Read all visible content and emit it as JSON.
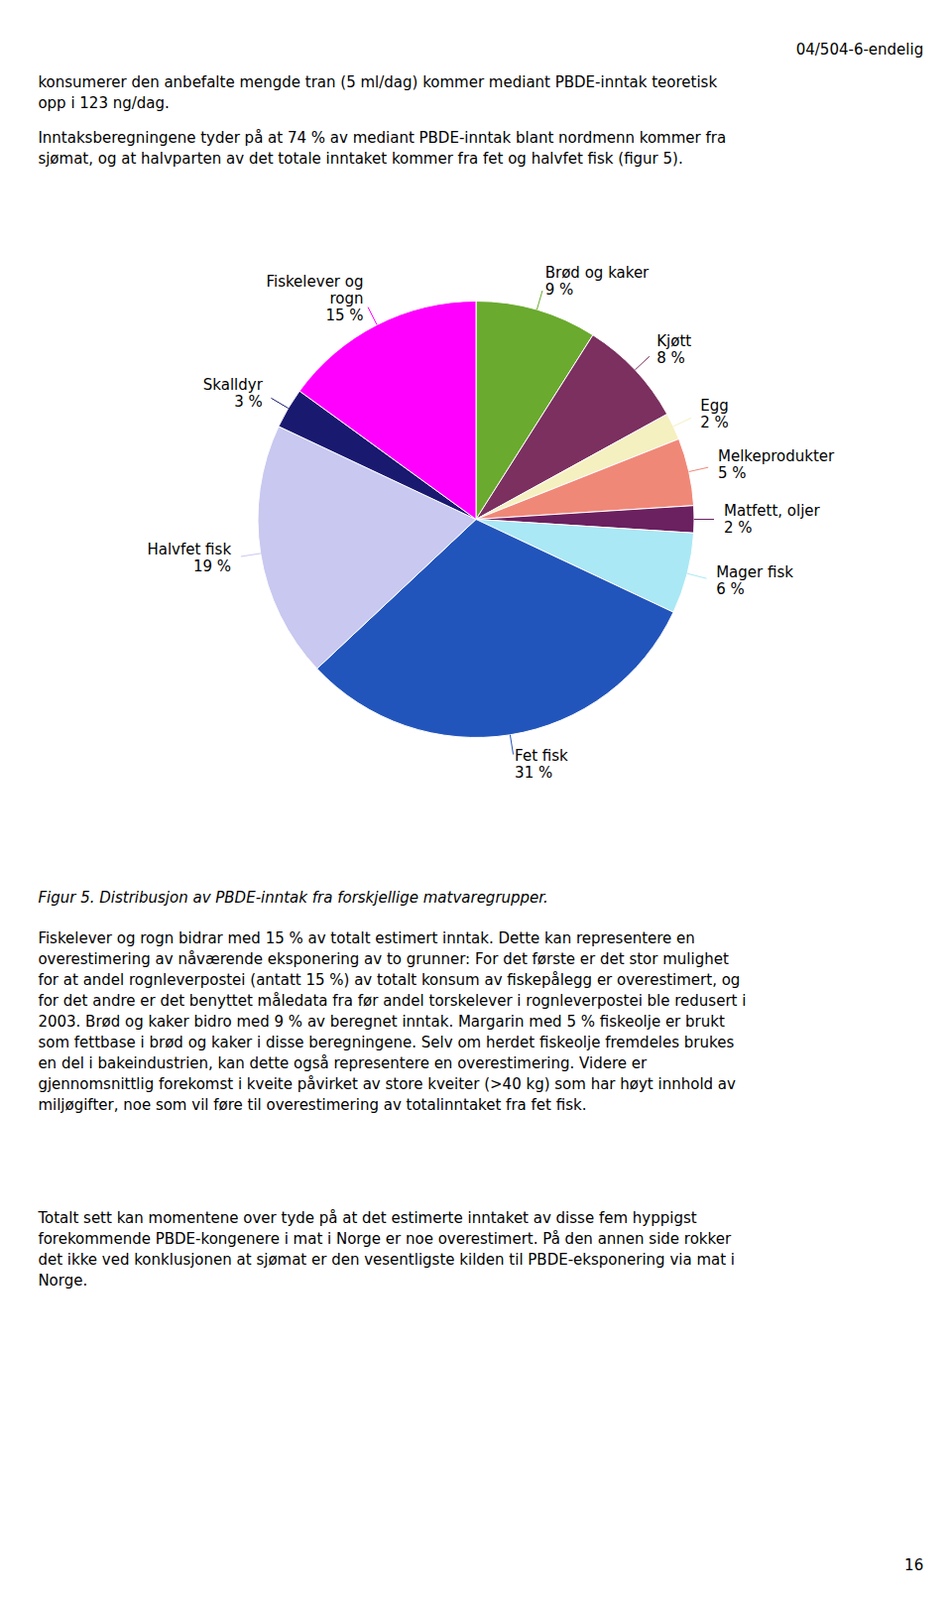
{
  "chart_data": {
    "type": "pie",
    "categories": [
      "Brød og kaker",
      "Kjøtt",
      "Egg",
      "Melkeprodukter",
      "Matfett, oljer",
      "Mager fisk",
      "Fet fisk",
      "Halvfet fisk",
      "Skalldyr",
      "Fiskelever og\nrogn"
    ],
    "values": [
      9,
      8,
      2,
      5,
      2,
      6,
      31,
      19,
      3,
      15
    ],
    "value_labels": [
      "9 %",
      "8 %",
      "2 %",
      "5 %",
      "2 %",
      "6 %",
      "31 %",
      "19 %",
      "3 %",
      "15 %"
    ],
    "colors": [
      "#6aaa2e",
      "#7b3060",
      "#f5f0c0",
      "#f08878",
      "#6b2060",
      "#aae8f5",
      "#2255bb",
      "#c8c8f0",
      "#191970",
      "#ff00ff"
    ],
    "data_labels": true
  },
  "page": {
    "header": "04/504-6-endelig",
    "paragraphs_above": [
      "konsumerer den anbefalte mengde tran (5 ml/dag) kommer mediant PBDE-inntak teoretisk\nopp i 123 ng/dag.",
      "Inntaksberegningene tyder på at 74 % av mediant PBDE-inntak blant nordmenn kommer fra\nsjømat, og at halvparten av det totale inntaket kommer fra fet og halvfet fisk (figur 5)."
    ],
    "caption": "Figur 5. Distribusjon av PBDE-inntak fra forskjellige matvaregrupper.",
    "paragraphs_below": [
      "Fiskelever og rogn bidrar med 15 % av totalt estimert inntak. Dette kan representere en\noverestimering av nåværende eksponering av to grunner: For det første er det stor mulighet\nfor at andel rognleverpostei (antatt 15 %) av totalt konsum av fiskepålegg er overestimert, og\nfor det andre er det benyttet måledata fra før andel torskelever i rognleverpostei ble redusert i\n2003. Brød og kaker bidro med 9 % av beregnet inntak. Margarin med 5 % fiskeolje er brukt\nsom fettbase i brød og kaker i disse beregningene. Selv om herdet fiskeolje fremdeles brukes\nen del i bakeindustrien, kan dette også representere en overestimering. Videre er\ngjennomsnittlig forekomst i kveite påvirket av store kveiter (>40 kg) som har høyt innhold av\nmiljøgifter, noe som vil føre til overestimering av totalinntaket fra fet fisk.",
      "Totalt sett kan momentene over tyde på at det estimerte inntaket av disse fem hyppigst\nforekommende PBDE-kongenere i mat i Norge er noe overestimert. På den annen side rokker\ndet ikke ved konklusjonen at sjømat er den vesentligste kilden til PBDE-eksponering via mat i\nNorge."
    ],
    "page_number": "16"
  }
}
